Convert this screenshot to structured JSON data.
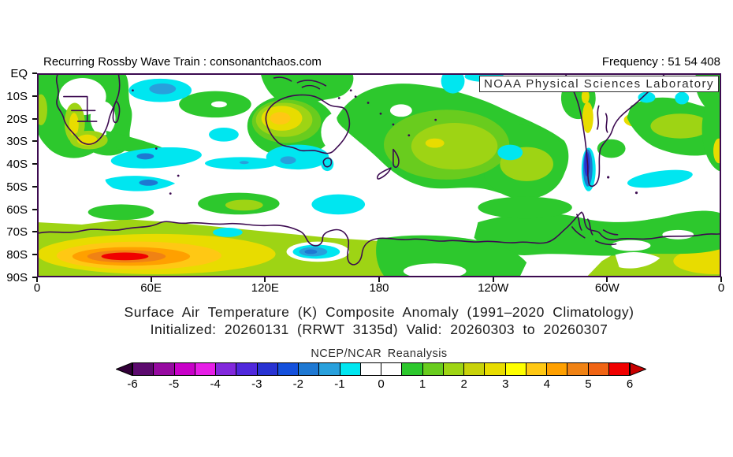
{
  "header": {
    "left_text": "Recurring Rossby Wave Train : consonantchaos.com",
    "right_text": "Frequency : 51 54 408"
  },
  "map": {
    "source_label": "NOAA Physical Sciences Laboratory",
    "lat_ticks": [
      "EQ",
      "10S",
      "20S",
      "30S",
      "40S",
      "50S",
      "60S",
      "70S",
      "80S",
      "90S"
    ],
    "lon_ticks": [
      "0",
      "60E",
      "120E",
      "180",
      "120W",
      "60W",
      "0"
    ],
    "coastline_color": "#3C0A50"
  },
  "title": {
    "line1": "Surface Air Temperature (K) Composite Anomaly (1991–2020 Climatology)",
    "line2": "Initialized: 20260131 (RRWT 3135d) Valid: 20260303 to 20260307"
  },
  "colorbar": {
    "label": "NCEP/NCAR Reanalysis",
    "min": -6,
    "max": 6,
    "step": 0.5,
    "tick_labels": [
      "-6",
      "-5",
      "-4",
      "-3",
      "-2",
      "-1",
      "0",
      "1",
      "2",
      "3",
      "4",
      "5",
      "6"
    ],
    "segment_colors": [
      "#5C0A6E",
      "#960AA0",
      "#C800C8",
      "#E61EE6",
      "#8228DC",
      "#5028DC",
      "#2832D2",
      "#1450DC",
      "#1E78D2",
      "#28A0DC",
      "#00E6F0",
      "#FFFFFF",
      "#FFFFFF",
      "#2DC82D",
      "#69CC1E",
      "#9ED414",
      "#C8D20A",
      "#E8DC00",
      "#FFFF00",
      "#FFC814",
      "#FFA000",
      "#F08214",
      "#F06414",
      "#F00000"
    ],
    "below_min_color": "#320038",
    "above_max_color": "#C80000"
  }
}
